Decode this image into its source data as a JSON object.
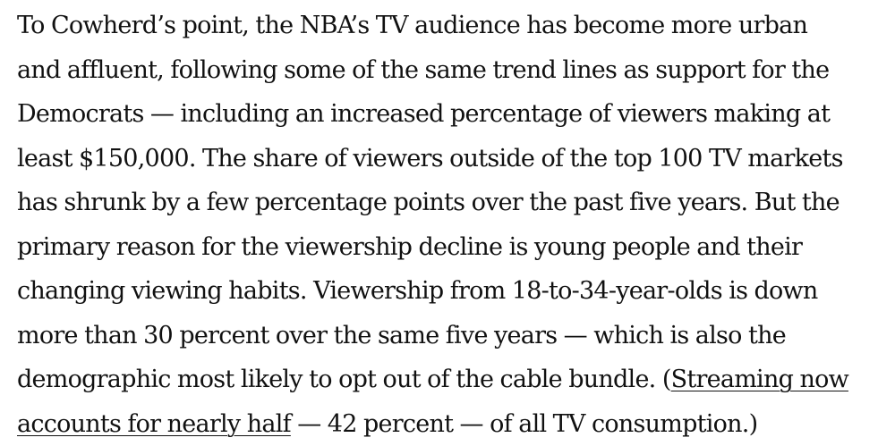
{
  "article": {
    "lines": [
      "To Cowherd’s point, the NBA’s TV audience has become more urban",
      "and affluent, following some of the same trend lines as support for the",
      "Democrats — including an increased percentage of viewers making at",
      "least $150,000. The share of viewers outside of the top 100 TV markets",
      "has shrunk by a few percentage points over the past five years. But the",
      "primary reason for the viewership decline is young people and their",
      "changing viewing habits. Viewership from 18-to-34-year-olds is down",
      "more than 30 percent over the same five years — which is also the"
    ],
    "line9_before_link": "demographic most likely to opt out of the cable bundle. (",
    "link_part1": "Streaming now",
    "link_part2": "accounts for nearly half",
    "line10_after_link": " — 42 percent — of all TV consumption.)"
  }
}
